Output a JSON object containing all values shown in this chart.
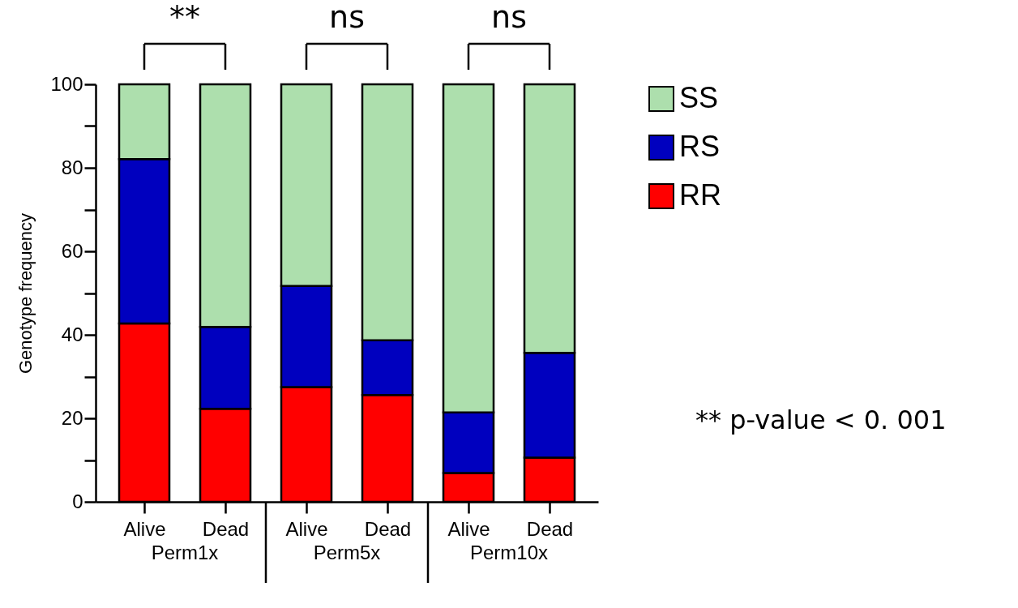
{
  "chart_data": {
    "type": "bar",
    "stacked": true,
    "ylabel": "Genotype frequency",
    "categories": [
      "Alive",
      "Dead",
      "Alive",
      "Dead",
      "Alive",
      "Dead"
    ],
    "series": [
      {
        "name": "RR",
        "color": "#ff0000",
        "values": [
          42.7,
          22.3,
          27.5,
          25.6,
          6.9,
          10.6
        ]
      },
      {
        "name": "RS",
        "color": "#0000bf",
        "values": [
          39.4,
          19.6,
          24.2,
          13.1,
          14.5,
          25.1
        ]
      },
      {
        "name": "SS",
        "color": "#addfad",
        "values": [
          17.9,
          58.1,
          48.3,
          61.3,
          78.6,
          64.3
        ]
      }
    ],
    "ylim": [
      0,
      100
    ],
    "yticks": [
      0,
      {
        "value": 10,
        "label": null
      },
      20,
      {
        "value": 30,
        "label": null
      },
      40,
      {
        "value": 50,
        "label": null
      },
      60,
      {
        "value": 70,
        "label": null
      },
      80,
      {
        "value": 90,
        "label": null
      },
      100
    ],
    "legend": "right",
    "grid": false,
    "annotations": [
      "Perm1x",
      "Perm5x",
      "Perm10x",
      "**",
      "ns",
      "ns",
      "** p-value < 0. 001"
    ]
  }
}
